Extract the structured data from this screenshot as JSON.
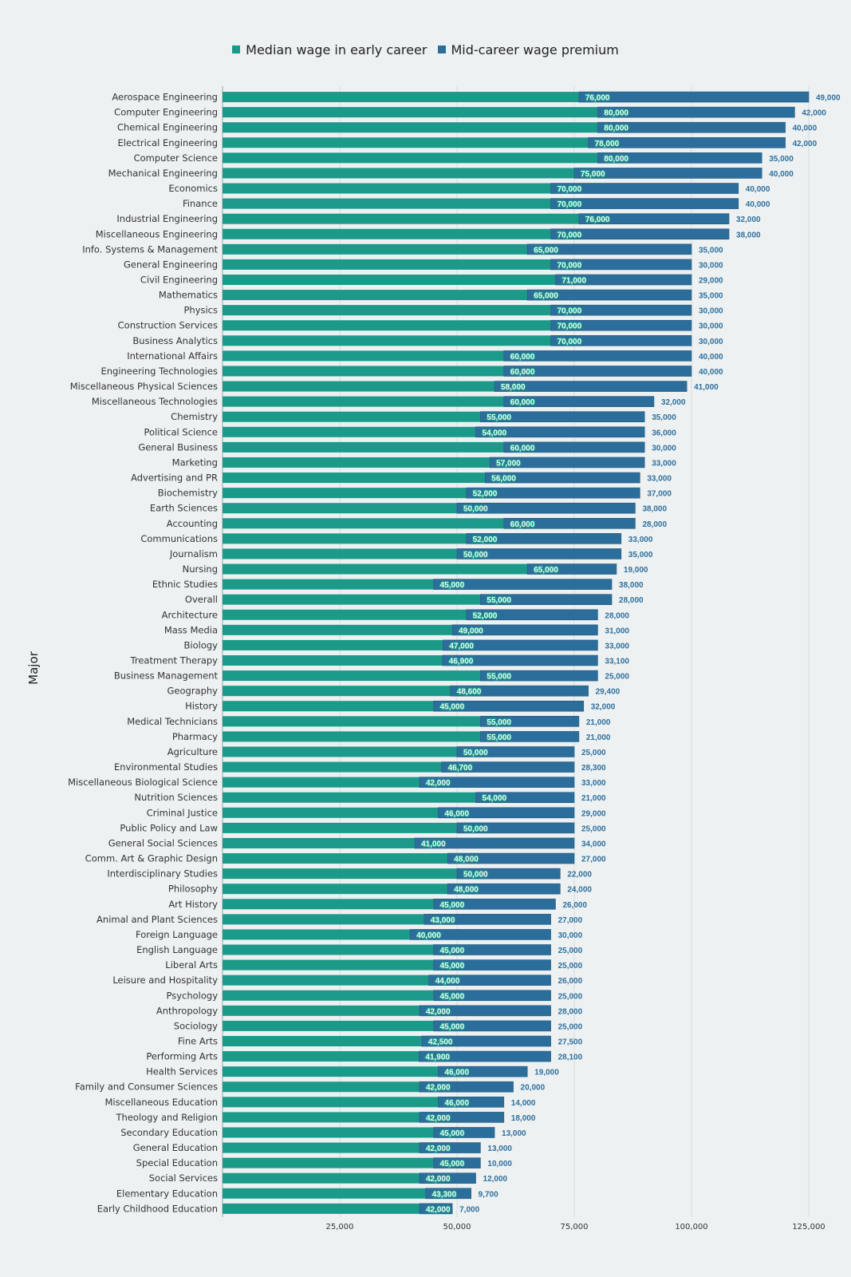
{
  "chart_data": {
    "type": "bar",
    "orientation": "horizontal",
    "stacked": true,
    "title": "",
    "xlabel": "",
    "ylabel": "Major",
    "xlim": [
      0,
      130000
    ],
    "xticks": [
      25000,
      50000,
      75000,
      100000,
      125000
    ],
    "xtick_labels": [
      "25,000",
      "50,000",
      "75,000",
      "100,000",
      "125,000"
    ],
    "grid": true,
    "legend_position": "top-center",
    "colors": {
      "early": "#1b9a8a",
      "premium": "#2c6e9b"
    },
    "legend": [
      "Median wage in early career",
      "Mid-career wage premium"
    ],
    "categories": [
      "Aerospace Engineering",
      "Computer Engineering",
      "Chemical Engineering",
      "Electrical Engineering",
      "Computer Science",
      "Mechanical Engineering",
      "Economics",
      "Finance",
      "Industrial Engineering",
      "Miscellaneous Engineering",
      "Info. Systems & Management",
      "General Engineering",
      "Civil Engineering",
      "Mathematics",
      "Physics",
      "Construction Services",
      "Business Analytics",
      "International Affairs",
      "Engineering Technologies",
      "Miscellaneous Physical Sciences",
      "Miscellaneous Technologies",
      "Chemistry",
      "Political Science",
      "General Business",
      "Marketing",
      "Advertising and PR",
      "Biochemistry",
      "Earth Sciences",
      "Accounting",
      "Communications",
      "Journalism",
      "Nursing",
      "Ethnic Studies",
      "Overall",
      "Architecture",
      "Mass Media",
      "Biology",
      "Treatment Therapy",
      "Business Management",
      "Geography",
      "History",
      "Medical Technicians",
      "Pharmacy",
      "Agriculture",
      "Environmental Studies",
      "Miscellaneous Biological Science",
      "Nutrition Sciences",
      "Criminal Justice",
      "Public Policy and Law",
      "General Social Sciences",
      "Comm. Art & Graphic Design",
      "Interdisciplinary Studies",
      "Philosophy",
      "Art History",
      "Animal and Plant Sciences",
      "Foreign Language",
      "English Language",
      "Liberal Arts",
      "Leisure and Hospitality",
      "Psychology",
      "Anthropology",
      "Sociology",
      "Fine Arts",
      "Performing Arts",
      "Health Services",
      "Family and Consumer Sciences",
      "Miscellaneous Education",
      "Theology and Religion",
      "Secondary Education",
      "General Education",
      "Special Education",
      "Social Services",
      "Elementary Education",
      "Early Childhood Education"
    ],
    "series": [
      {
        "name": "Median wage in early career",
        "values": [
          76000,
          80000,
          80000,
          78000,
          80000,
          75000,
          70000,
          70000,
          76000,
          70000,
          65000,
          70000,
          71000,
          65000,
          70000,
          70000,
          70000,
          60000,
          60000,
          58000,
          60000,
          55000,
          54000,
          60000,
          57000,
          56000,
          52000,
          50000,
          60000,
          52000,
          50000,
          65000,
          45000,
          55000,
          52000,
          49000,
          47000,
          46900,
          55000,
          48600,
          45000,
          55000,
          55000,
          50000,
          46700,
          42000,
          54000,
          46000,
          50000,
          41000,
          48000,
          50000,
          48000,
          45000,
          43000,
          40000,
          45000,
          45000,
          44000,
          45000,
          42000,
          45000,
          42500,
          41900,
          46000,
          42000,
          46000,
          42000,
          45000,
          42000,
          45000,
          42000,
          43300,
          42000
        ],
        "labels": [
          "76,000",
          "80,000",
          "80,000",
          "78,000",
          "80,000",
          "75,000",
          "70,000",
          "70,000",
          "76,000",
          "70,000",
          "65,000",
          "70,000",
          "71,000",
          "65,000",
          "70,000",
          "70,000",
          "70,000",
          "60,000",
          "60,000",
          "58,000",
          "60,000",
          "55,000",
          "54,000",
          "60,000",
          "57,000",
          "56,000",
          "52,000",
          "50,000",
          "60,000",
          "52,000",
          "50,000",
          "65,000",
          "45,000",
          "55,000",
          "52,000",
          "49,000",
          "47,000",
          "46,900",
          "55,000",
          "48,600",
          "45,000",
          "55,000",
          "55,000",
          "50,000",
          "46,700",
          "42,000",
          "54,000",
          "46,000",
          "50,000",
          "41,000",
          "48,000",
          "50,000",
          "48,000",
          "45,000",
          "43,000",
          "40,000",
          "45,000",
          "45,000",
          "44,000",
          "45,000",
          "42,000",
          "45,000",
          "42,500",
          "41,900",
          "46,000",
          "42,000",
          "46,000",
          "42,000",
          "45,000",
          "42,000",
          "45,000",
          "42,000",
          "43,300",
          "42,000"
        ]
      },
      {
        "name": "Mid-career wage premium",
        "values": [
          49000,
          42000,
          40000,
          42000,
          35000,
          40000,
          40000,
          40000,
          32000,
          38000,
          35000,
          30000,
          29000,
          35000,
          30000,
          30000,
          30000,
          40000,
          40000,
          41000,
          32000,
          35000,
          36000,
          30000,
          33000,
          33000,
          37000,
          38000,
          28000,
          33000,
          35000,
          19000,
          38000,
          28000,
          28000,
          31000,
          33000,
          33100,
          25000,
          29400,
          32000,
          21000,
          21000,
          25000,
          28300,
          33000,
          21000,
          29000,
          25000,
          34000,
          27000,
          22000,
          24000,
          26000,
          27000,
          30000,
          25000,
          25000,
          26000,
          25000,
          28000,
          25000,
          27500,
          28100,
          19000,
          20000,
          14000,
          18000,
          13000,
          13000,
          10000,
          12000,
          9700,
          7000
        ],
        "labels": [
          "49,000",
          "42,000",
          "40,000",
          "42,000",
          "35,000",
          "40,000",
          "40,000",
          "40,000",
          "32,000",
          "38,000",
          "35,000",
          "30,000",
          "29,000",
          "35,000",
          "30,000",
          "30,000",
          "30,000",
          "40,000",
          "40,000",
          "41,000",
          "32,000",
          "35,000",
          "36,000",
          "30,000",
          "33,000",
          "33,000",
          "37,000",
          "38,000",
          "28,000",
          "33,000",
          "35,000",
          "19,000",
          "38,000",
          "28,000",
          "28,000",
          "31,000",
          "33,000",
          "33,100",
          "25,000",
          "29,400",
          "32,000",
          "21,000",
          "21,000",
          "25,000",
          "28,300",
          "33,000",
          "21,000",
          "29,000",
          "25,000",
          "34,000",
          "27,000",
          "22,000",
          "24,000",
          "26,000",
          "27,000",
          "30,000",
          "25,000",
          "25,000",
          "26,000",
          "25,000",
          "28,000",
          "25,000",
          "27,500",
          "28,100",
          "19,000",
          "20,000",
          "14,000",
          "18,000",
          "13,000",
          "13,000",
          "10,000",
          "12,000",
          "9,700",
          "7,000"
        ]
      }
    ]
  }
}
